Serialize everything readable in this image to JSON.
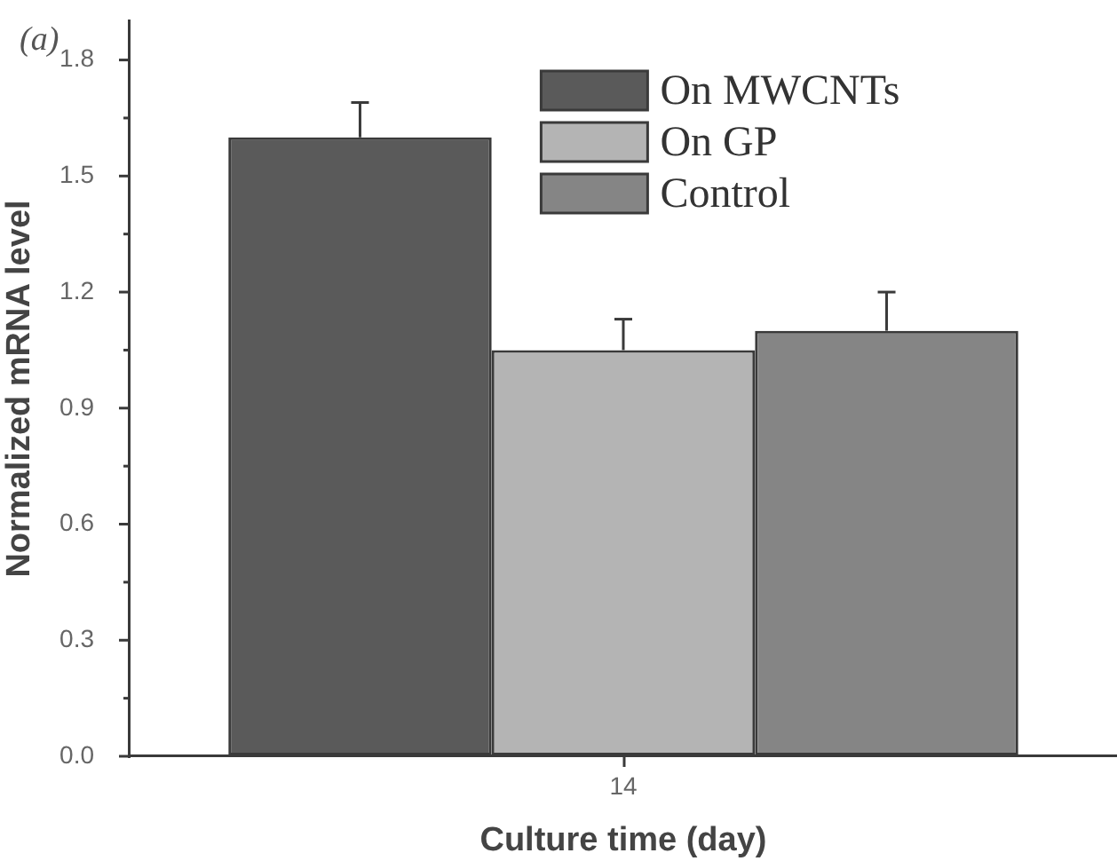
{
  "chart_data": {
    "type": "bar",
    "xlabel": "Culture time (day)",
    "ylabel": "Normalized mRNA level",
    "annotations": [
      "(a)"
    ],
    "categories": [
      "14"
    ],
    "series": [
      {
        "name": "On MWCNTs",
        "color": "#5a5a5a",
        "values": [
          1.6
        ],
        "errors": [
          [
            1.6,
            1.69
          ]
        ]
      },
      {
        "name": "On GP",
        "color": "#b4b4b4",
        "values": [
          1.05
        ],
        "errors": [
          [
            1.05,
            1.13
          ]
        ]
      },
      {
        "name": "Control",
        "color": "#858585",
        "values": [
          1.1
        ],
        "errors": [
          [
            1.1,
            1.2
          ]
        ]
      }
    ],
    "ylim": [
      0,
      1.9
    ],
    "yticks": [
      {
        "value": 0,
        "label": "0.0"
      },
      {
        "value": 0.15,
        "label": null
      },
      0.3,
      {
        "value": 0.45,
        "label": null
      },
      0.6,
      {
        "value": 0.75,
        "label": null
      },
      0.9,
      {
        "value": 1.05,
        "label": null
      },
      1.2,
      {
        "value": 1.35,
        "label": null
      },
      1.5,
      {
        "value": 1.65,
        "label": null
      },
      1.8
    ],
    "legend": "top right"
  }
}
